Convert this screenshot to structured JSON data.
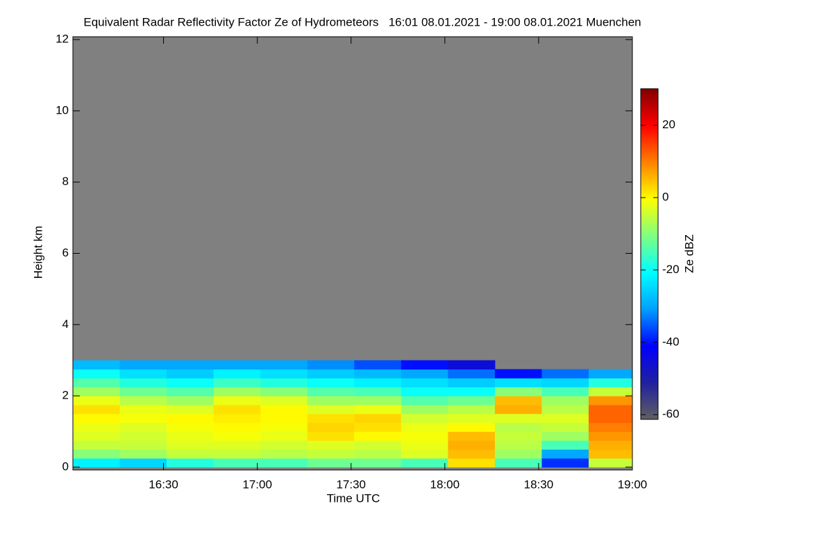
{
  "chart_data": {
    "type": "heatmap",
    "title": "Equivalent Radar Reflectivity Factor Ze of Hydrometeors   16:01 08.01.2021 - 19:00 08.01.2021 Muenchen",
    "xlabel": "Time UTC",
    "ylabel": "Height km",
    "colorbar_label": "Ze dBZ",
    "xlim": [
      961,
      1140
    ],
    "xticks": [
      {
        "value": 990,
        "label": "16:30"
      },
      {
        "value": 1020,
        "label": "17:00"
      },
      {
        "value": 1050,
        "label": "17:30"
      },
      {
        "value": 1080,
        "label": "18:00"
      },
      {
        "value": 1110,
        "label": "18:30"
      },
      {
        "value": 1140,
        "label": "19:00"
      }
    ],
    "ylim": [
      -0.08,
      12.08
    ],
    "yticks": [
      0,
      2,
      4,
      6,
      8,
      10,
      12
    ],
    "zlim": [
      -61.3,
      30.1
    ],
    "zticks": [
      -60,
      -40,
      -20,
      0,
      20
    ],
    "background": "#808080",
    "colormap": [
      "#606060",
      "#2020a0",
      "#0000ff",
      "#00a0ff",
      "#00ffff",
      "#80ff80",
      "#ffff00",
      "#ff8000",
      "#ff0000",
      "#800000"
    ],
    "xbins": [
      961,
      976,
      991,
      1006,
      1021,
      1036,
      1051,
      1066,
      1081,
      1096,
      1111,
      1126,
      1140
    ],
    "ybins": [
      0,
      0.25,
      0.5,
      0.75,
      1,
      1.25,
      1.5,
      1.75,
      2,
      2.25,
      2.5,
      2.75,
      3
    ],
    "z": [
      [
        -22,
        -25,
        -18,
        -15,
        -15,
        -12,
        -12,
        -15,
        2,
        -15,
        -38,
        -5
      ],
      [
        -10,
        -8,
        -5,
        -5,
        -6,
        -5,
        -6,
        -3,
        5,
        -8,
        -30,
        5
      ],
      [
        -5,
        -5,
        -3,
        -3,
        -4,
        -3,
        -4,
        -2,
        6,
        -6,
        -15,
        6
      ],
      [
        -3,
        -4,
        -2,
        -1,
        -2,
        2,
        0,
        -1,
        5,
        -5,
        -8,
        8
      ],
      [
        -2,
        -3,
        -1,
        0,
        -1,
        3,
        2,
        -2,
        0,
        -6,
        -5,
        10
      ],
      [
        0,
        -1,
        0,
        1,
        0,
        2,
        3,
        -4,
        -3,
        -3,
        -3,
        12
      ],
      [
        2,
        -2,
        -3,
        2,
        0,
        -3,
        -2,
        -8,
        -6,
        6,
        -6,
        12
      ],
      [
        -2,
        -6,
        -8,
        -2,
        -3,
        -8,
        -8,
        -14,
        -12,
        5,
        -8,
        8
      ],
      [
        -8,
        -12,
        -14,
        -8,
        -10,
        -14,
        -15,
        -20,
        -20,
        -10,
        -15,
        -5
      ],
      [
        -14,
        -18,
        -20,
        -16,
        -18,
        -20,
        -22,
        -24,
        -26,
        -24,
        -25,
        -18
      ],
      [
        -20,
        -24,
        -26,
        -22,
        -24,
        -26,
        -28,
        -30,
        -34,
        -40,
        -34,
        -30
      ],
      [
        -28,
        -30,
        -30,
        -30,
        -30,
        -32,
        -36,
        -40,
        -45,
        null,
        null,
        null
      ]
    ]
  }
}
